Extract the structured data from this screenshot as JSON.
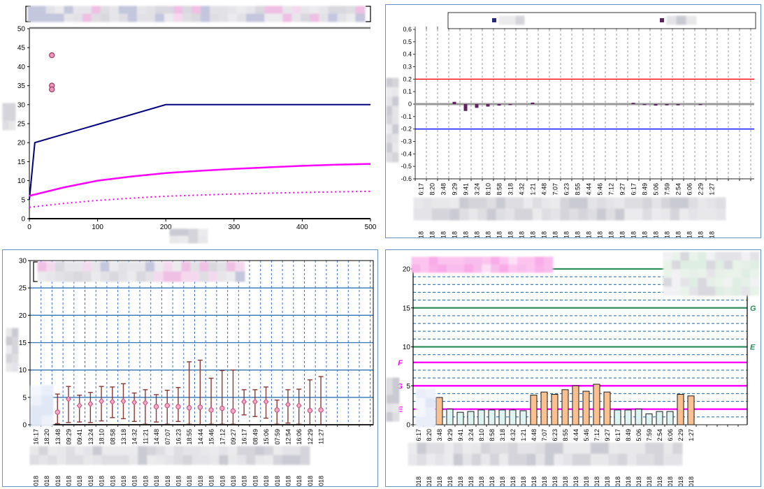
{
  "page": {
    "background": "#ffffff",
    "panel_border_color": "#6591c5"
  },
  "redaction_note": "all titles, legends and date rows are blurred/redacted in source image",
  "chart_data": [
    {
      "id": "top-left",
      "type": "line",
      "title": "",
      "legend_redacted": true,
      "xlabel_redacted": true,
      "ylabel_redacted": true,
      "xlim": [
        0,
        500
      ],
      "ylim": [
        0,
        50
      ],
      "xticks": [
        0,
        100,
        200,
        300,
        400,
        500
      ],
      "yticks": [
        0,
        5,
        10,
        15,
        20,
        25,
        30,
        35,
        40,
        45,
        50
      ],
      "grid": false,
      "series": [
        {
          "name": "navy-line",
          "color": "#000080",
          "style": "solid",
          "width": 2,
          "points": [
            [
              0,
              5
            ],
            [
              8,
              20
            ],
            [
              200,
              30
            ],
            [
              500,
              30
            ]
          ]
        },
        {
          "name": "magenta-solid-line",
          "color": "#ff00ff",
          "style": "solid",
          "width": 2.5,
          "points": [
            [
              0,
              6
            ],
            [
              50,
              8.2
            ],
            [
              100,
              10
            ],
            [
              150,
              11.1
            ],
            [
              200,
              12
            ],
            [
              250,
              12.6
            ],
            [
              300,
              13.1
            ],
            [
              350,
              13.5
            ],
            [
              400,
              13.9
            ],
            [
              450,
              14.2
            ],
            [
              500,
              14.4
            ]
          ]
        },
        {
          "name": "magenta-dotted-line",
          "color": "#ff00ff",
          "style": "dotted",
          "width": 2,
          "points": [
            [
              0,
              3
            ],
            [
              50,
              4
            ],
            [
              100,
              4.8
            ],
            [
              150,
              5.4
            ],
            [
              200,
              5.9
            ],
            [
              250,
              6.2
            ],
            [
              300,
              6.5
            ],
            [
              350,
              6.7
            ],
            [
              400,
              6.9
            ],
            [
              450,
              7.05
            ],
            [
              500,
              7.2
            ]
          ]
        }
      ],
      "scatter": {
        "name": "pink-outlier-markers",
        "fill": "#f592be",
        "stroke": "#94405f",
        "points": [
          [
            33,
            43
          ],
          [
            33,
            35
          ],
          [
            33,
            34
          ]
        ]
      }
    },
    {
      "id": "top-right",
      "type": "delta-bar",
      "legend_redacted": true,
      "legend_marker_colors": [
        "#28287e",
        "#5e2263"
      ],
      "ylim": [
        -0.6,
        0.6
      ],
      "ytick_step": 0.1,
      "bar_color": "#5e2263",
      "grid_color": "#999999",
      "ref_lines": [
        {
          "y": 0.2,
          "color": "#ff0000",
          "width": 1.3
        },
        {
          "y": 0,
          "color": "#999999",
          "width": 3
        },
        {
          "y": -0.2,
          "color": "#0000ff",
          "width": 1.3
        }
      ],
      "categories": [
        "6:17",
        "8:20",
        "3:48",
        "9:29",
        "9:41",
        "3:24",
        "8:10",
        "8:58",
        "3:18",
        "4:32",
        "1:21",
        "4:48",
        "7:07",
        "6:23",
        "8:55",
        "4:44",
        "5:46",
        "7:12",
        "9:27",
        "6:17",
        "8:49",
        "5:06",
        "7:59",
        "2:54",
        "6:06",
        "2:29",
        "1:27"
      ],
      "values": [
        0,
        0,
        0,
        0.018,
        -0.055,
        -0.03,
        -0.02,
        -0.012,
        -0.008,
        0,
        0.012,
        0,
        0,
        0,
        0,
        0,
        0,
        0,
        0,
        0.01,
        -0.008,
        -0.012,
        -0.01,
        -0.01,
        0,
        -0.008,
        0
      ],
      "year_label": "2018"
    },
    {
      "id": "bottom-left",
      "type": "errorbar",
      "legend_redacted": true,
      "ylabel_redacted": true,
      "ylim": [
        0,
        30
      ],
      "yticks": [
        0,
        5,
        10,
        15,
        20,
        25,
        30
      ],
      "hlines": [
        5,
        10,
        15,
        20,
        25
      ],
      "hline_color": "#2e75b6",
      "vgrid_color": "#3b6fd4",
      "whisker_color": "#8c3836",
      "marker_fill": "#f5a8c8",
      "marker_stroke": "#c4567e",
      "categories": [
        "16:17",
        "18:20",
        "13:48",
        "09:29",
        "09:41",
        "13:24",
        "18:10",
        "08:58",
        "13:18",
        "14:32",
        "11:21",
        "14:48",
        "07:07",
        "16:23",
        "18:55",
        "14:44",
        "15:46",
        "17:12",
        "09:27",
        "16:17",
        "08:49",
        "15:06",
        "07:59",
        "12:54",
        "16:06",
        "12:29",
        "11:27"
      ],
      "points": [
        null,
        null,
        {
          "mid": 2.3,
          "lo": 0.2,
          "hi": 5.6,
          "marker": "circle"
        },
        {
          "mid": 4.7,
          "lo": 0.4,
          "hi": 7.0,
          "marker": "diamond"
        },
        {
          "mid": 3.5,
          "lo": 0.5,
          "hi": 5.4,
          "marker": "diamond"
        },
        {
          "mid": 3.8,
          "lo": 0.4,
          "hi": 5.9,
          "marker": "diamond"
        },
        {
          "mid": 4.3,
          "lo": 0.7,
          "hi": 7.0,
          "marker": "diamond"
        },
        {
          "mid": 4.2,
          "lo": 1.3,
          "hi": 6.9,
          "marker": "diamond"
        },
        {
          "mid": 4.3,
          "lo": 1.1,
          "hi": 7.5,
          "marker": "diamond"
        },
        {
          "mid": 4.1,
          "lo": 0.6,
          "hi": 5.8,
          "marker": "diamond"
        },
        {
          "mid": 4.0,
          "lo": 0.1,
          "hi": 6.4,
          "marker": "diamond"
        },
        {
          "mid": 3.3,
          "lo": 0.5,
          "hi": 5.5,
          "marker": "circle"
        },
        {
          "mid": 3.5,
          "lo": 0.1,
          "hi": 6.3,
          "marker": "circle"
        },
        {
          "mid": 3.3,
          "lo": 0.6,
          "hi": 6.8,
          "marker": "circle"
        },
        {
          "mid": 3.1,
          "lo": 0.1,
          "hi": 11.5,
          "marker": "circle"
        },
        {
          "mid": 3.2,
          "lo": 0.0,
          "hi": 11.8,
          "marker": "circle"
        },
        {
          "mid": 2.7,
          "lo": 0.1,
          "hi": 8.5,
          "marker": "circle"
        },
        {
          "mid": 3.0,
          "lo": 0.1,
          "hi": 9.9,
          "marker": "circle"
        },
        {
          "mid": 2.5,
          "lo": 0.1,
          "hi": 10.0,
          "marker": "circle"
        },
        {
          "mid": 4.2,
          "lo": 1.8,
          "hi": 6.4,
          "marker": "diamond"
        },
        {
          "mid": 4.2,
          "lo": 1.5,
          "hi": 6.4,
          "marker": "diamond"
        },
        {
          "mid": 4.2,
          "lo": 1.2,
          "hi": 6.9,
          "marker": "diamond"
        },
        {
          "mid": 2.7,
          "lo": 0.1,
          "hi": 4.5,
          "marker": "circle"
        },
        {
          "mid": 3.7,
          "lo": 0.3,
          "hi": 6.4,
          "marker": "diamond"
        },
        {
          "mid": 3.5,
          "lo": 0.1,
          "hi": 6.5,
          "marker": "diamond"
        },
        {
          "mid": 2.6,
          "lo": 0.0,
          "hi": 8.2,
          "marker": "circle"
        },
        {
          "mid": 2.7,
          "lo": 0.0,
          "hi": 8.8,
          "marker": "circle"
        }
      ],
      "year_label": "2018"
    },
    {
      "id": "bottom-right",
      "type": "level-bar",
      "title_redacted": true,
      "legend_redacted": true,
      "ylabel_redacted": true,
      "ylim": [
        0,
        20
      ],
      "yticks": [
        0,
        5,
        10,
        15,
        20
      ],
      "dashed_grid_y": [
        1,
        3,
        4,
        6,
        7,
        9,
        11,
        12,
        13,
        14,
        16,
        17,
        18,
        19
      ],
      "dashed_grid_color": "#2e75b6",
      "green_color": "#2f8f5b",
      "magenta_color": "#ff00ff",
      "green_lines": [
        {
          "y": 20,
          "label": "F"
        },
        {
          "y": 15,
          "label": "G"
        },
        {
          "y": 10,
          "label": "E"
        }
      ],
      "magenta_lines": [
        {
          "y": 8,
          "label": "F"
        },
        {
          "y": 5,
          "label": "G"
        },
        {
          "y": 2,
          "label": "E"
        }
      ],
      "orange_bar": {
        "fill": "#fac08f",
        "stroke": "#1a1a1a"
      },
      "cyan_bar": {
        "fill": "#dcf4f2",
        "stroke": "#1a1a1a"
      },
      "categories": [
        "6:17",
        "8:20",
        "3:48",
        "9:29",
        "9:41",
        "3:24",
        "8:10",
        "8:58",
        "3:18",
        "4:32",
        "1:21",
        "4:48",
        "7:07",
        "6:23",
        "8:55",
        "4:44",
        "5:46",
        "7:12",
        "9:27",
        "6:17",
        "8:49",
        "5:06",
        "7:59",
        "2:54",
        "6:06",
        "2:29",
        "1:27"
      ],
      "bars": [
        null,
        null,
        {
          "v": 3.5,
          "c": "orange"
        },
        {
          "v": 2.0,
          "c": "cyan"
        },
        {
          "v": 1.6,
          "c": "cyan"
        },
        {
          "v": 1.7,
          "c": "cyan"
        },
        {
          "v": 1.9,
          "c": "cyan"
        },
        {
          "v": 1.9,
          "c": "cyan"
        },
        {
          "v": 1.9,
          "c": "cyan"
        },
        {
          "v": 1.9,
          "c": "cyan"
        },
        {
          "v": 1.8,
          "c": "cyan"
        },
        {
          "v": 3.8,
          "c": "orange"
        },
        {
          "v": 4.2,
          "c": "orange"
        },
        {
          "v": 3.9,
          "c": "orange"
        },
        {
          "v": 4.5,
          "c": "orange"
        },
        {
          "v": 5.0,
          "c": "orange"
        },
        {
          "v": 4.3,
          "c": "orange"
        },
        {
          "v": 5.2,
          "c": "orange"
        },
        {
          "v": 4.2,
          "c": "orange"
        },
        {
          "v": 1.9,
          "c": "cyan"
        },
        {
          "v": 1.9,
          "c": "cyan"
        },
        {
          "v": 2.0,
          "c": "cyan"
        },
        {
          "v": 1.4,
          "c": "cyan"
        },
        {
          "v": 1.7,
          "c": "cyan"
        },
        {
          "v": 1.7,
          "c": "cyan"
        },
        {
          "v": 3.9,
          "c": "orange"
        },
        {
          "v": 3.7,
          "c": "orange"
        }
      ],
      "year_label": "2018"
    }
  ]
}
